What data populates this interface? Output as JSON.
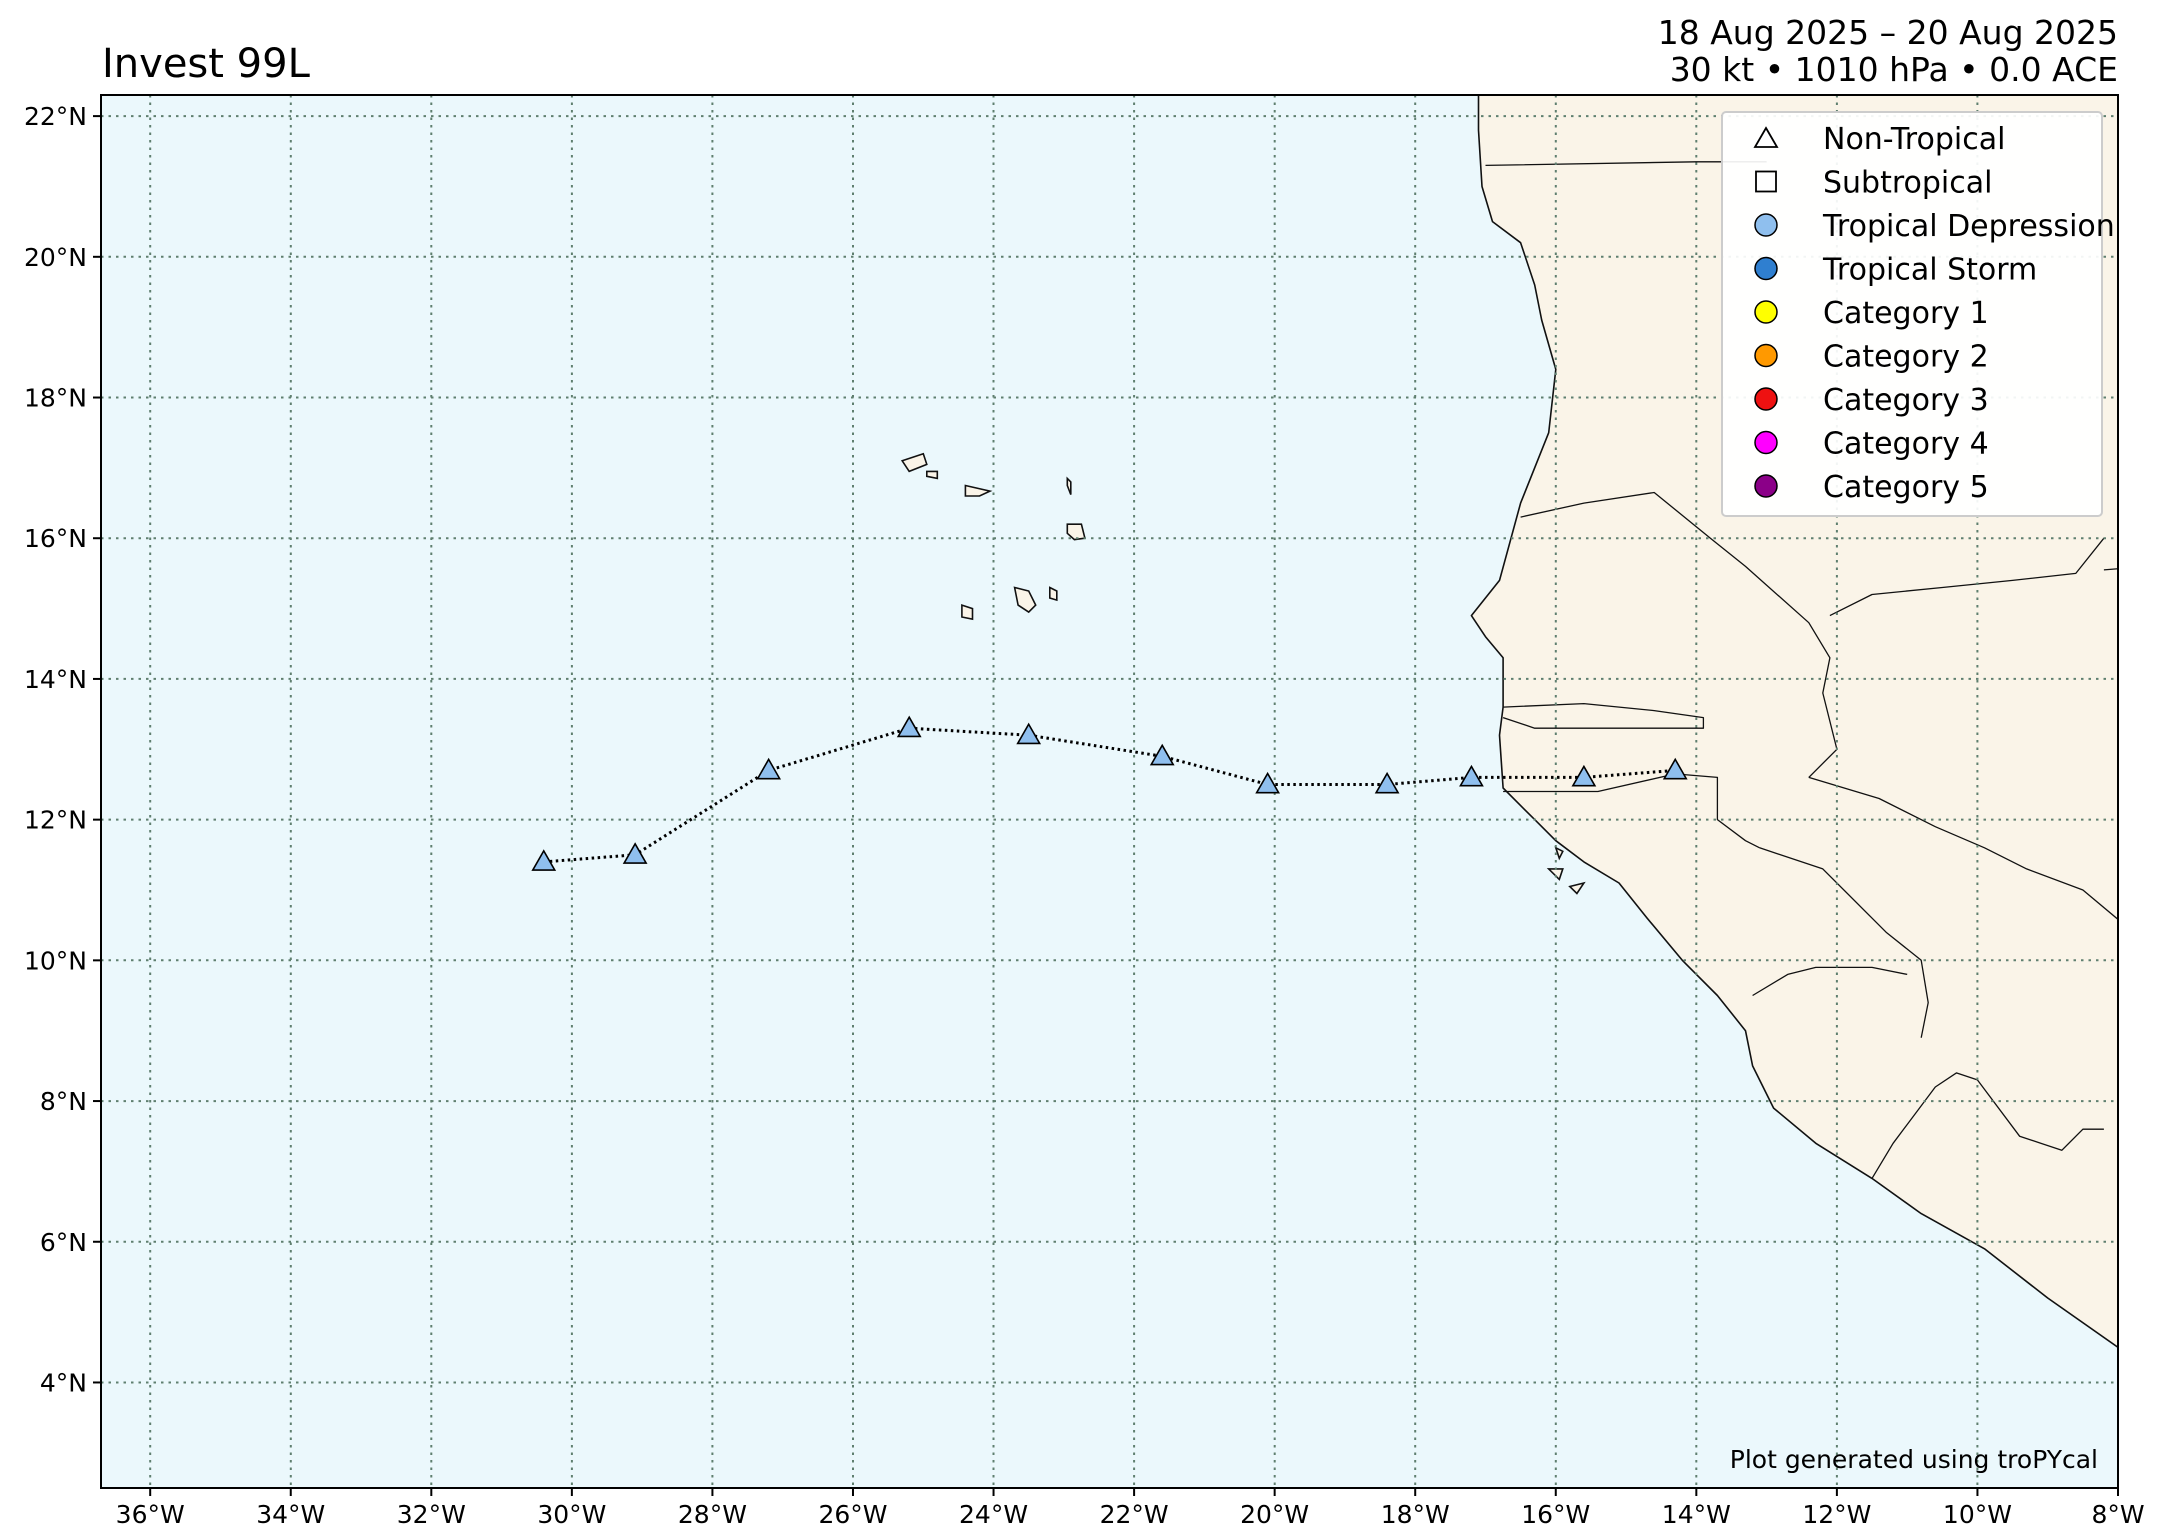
{
  "header": {
    "title": "Invest 99L",
    "date_range": "18 Aug 2025 – 20 Aug 2025",
    "stats": "30 kt • 1010 hPa • 0.0 ACE"
  },
  "map": {
    "extent": {
      "lon": [
        -36.7,
        -8
      ],
      "lat": [
        2.5,
        22.3
      ]
    },
    "colors": {
      "ocean": "#ebf8fc",
      "land": "#faf4e8",
      "grid": "#5f7f6f",
      "coast": "#111111"
    },
    "lon_ticks": [
      {
        "value": -36,
        "label": "36°W"
      },
      {
        "value": -34,
        "label": "34°W"
      },
      {
        "value": -32,
        "label": "32°W"
      },
      {
        "value": -30,
        "label": "30°W"
      },
      {
        "value": -28,
        "label": "28°W"
      },
      {
        "value": -26,
        "label": "26°W"
      },
      {
        "value": -24,
        "label": "24°W"
      },
      {
        "value": -22,
        "label": "22°W"
      },
      {
        "value": -20,
        "label": "20°W"
      },
      {
        "value": -18,
        "label": "18°W"
      },
      {
        "value": -16,
        "label": "16°W"
      },
      {
        "value": -14,
        "label": "14°W"
      },
      {
        "value": -12,
        "label": "12°W"
      },
      {
        "value": -10,
        "label": "10°W"
      },
      {
        "value": -8,
        "label": "8°W"
      }
    ],
    "lat_ticks": [
      {
        "value": 22,
        "label": "22°N"
      },
      {
        "value": 20,
        "label": "20°N"
      },
      {
        "value": 18,
        "label": "18°N"
      },
      {
        "value": 16,
        "label": "16°N"
      },
      {
        "value": 14,
        "label": "14°N"
      },
      {
        "value": 12,
        "label": "12°N"
      },
      {
        "value": 10,
        "label": "10°N"
      },
      {
        "value": 8,
        "label": "8°N"
      },
      {
        "value": 6,
        "label": "6°N"
      },
      {
        "value": 4,
        "label": "4°N"
      }
    ]
  },
  "legend": {
    "position": "top-right",
    "items": [
      {
        "label": "Non-Tropical",
        "marker": "triangle",
        "color": "#ffffff"
      },
      {
        "label": "Subtropical",
        "marker": "square",
        "color": "#ffffff"
      },
      {
        "label": "Tropical Depression",
        "marker": "circle",
        "color": "#8fbfee"
      },
      {
        "label": "Tropical Storm",
        "marker": "circle",
        "color": "#2f7fd0"
      },
      {
        "label": "Category 1",
        "marker": "circle",
        "color": "#ffff00"
      },
      {
        "label": "Category 2",
        "marker": "circle",
        "color": "#ff9900"
      },
      {
        "label": "Category 3",
        "marker": "circle",
        "color": "#ee1111"
      },
      {
        "label": "Category 4",
        "marker": "circle",
        "color": "#ff00ff"
      },
      {
        "label": "Category 5",
        "marker": "circle",
        "color": "#8b0088"
      }
    ]
  },
  "track": {
    "marker": "triangle",
    "color": "#8fbfee",
    "points": [
      {
        "lon": -30.4,
        "lat": 11.4
      },
      {
        "lon": -29.1,
        "lat": 11.5
      },
      {
        "lon": -27.2,
        "lat": 12.7
      },
      {
        "lon": -25.2,
        "lat": 13.3
      },
      {
        "lon": -23.5,
        "lat": 13.2
      },
      {
        "lon": -21.6,
        "lat": 12.9
      },
      {
        "lon": -20.1,
        "lat": 12.5
      },
      {
        "lon": -18.4,
        "lat": 12.5
      },
      {
        "lon": -17.2,
        "lat": 12.6
      },
      {
        "lon": -15.6,
        "lat": 12.6
      },
      {
        "lon": -14.3,
        "lat": 12.7
      }
    ]
  },
  "credit": "Plot generated using troPYcal"
}
